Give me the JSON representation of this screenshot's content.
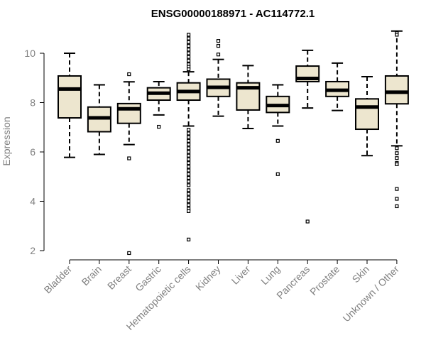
{
  "chart_data": {
    "type": "box",
    "title": "ENSG00000188971 - AC114772.1",
    "xlabel": "",
    "ylabel": "Expression",
    "ylim": [
      1.7,
      11.0
    ],
    "yticks": [
      2,
      4,
      6,
      8,
      10
    ],
    "grid": false,
    "box_color": "#ede6cf",
    "categories": [
      "Bladder",
      "Brain",
      "Breast",
      "Gastric",
      "Hematopoietic cells",
      "Kidney",
      "Liver",
      "Lung",
      "Pancreas",
      "Prostate",
      "Skin",
      "Unknown / Other"
    ],
    "boxes": [
      {
        "min": 5.78,
        "q1": 7.38,
        "median": 8.55,
        "q3": 9.08,
        "max": 10.0,
        "outliers": []
      },
      {
        "min": 5.9,
        "q1": 6.82,
        "median": 7.38,
        "q3": 7.82,
        "max": 8.72,
        "outliers": []
      },
      {
        "min": 6.3,
        "q1": 7.16,
        "median": 7.75,
        "q3": 7.96,
        "max": 8.84,
        "outliers": [
          9.15,
          5.74,
          1.9
        ]
      },
      {
        "min": 7.5,
        "q1": 8.1,
        "median": 8.38,
        "q3": 8.6,
        "max": 8.85,
        "outliers": [
          7.02
        ]
      },
      {
        "min": 7.05,
        "q1": 8.1,
        "median": 8.45,
        "q3": 8.8,
        "max": 9.25,
        "outliers": [
          10.75,
          10.6,
          10.45,
          10.3,
          10.15,
          10.0,
          9.85,
          9.7,
          9.55,
          9.45,
          9.35,
          6.9,
          6.75,
          6.6,
          6.45,
          6.3,
          6.15,
          6.0,
          5.85,
          5.7,
          5.55,
          5.4,
          5.25,
          5.1,
          4.95,
          4.8,
          4.65,
          4.45,
          4.3,
          4.15,
          4.0,
          3.85,
          3.7,
          3.6,
          2.45
        ]
      },
      {
        "min": 7.45,
        "q1": 8.25,
        "median": 8.62,
        "q3": 8.95,
        "max": 9.75,
        "outliers": [
          10.5,
          10.3,
          9.95
        ]
      },
      {
        "min": 6.95,
        "q1": 7.7,
        "median": 8.6,
        "q3": 8.8,
        "max": 9.5,
        "outliers": []
      },
      {
        "min": 7.05,
        "q1": 7.6,
        "median": 7.88,
        "q3": 8.25,
        "max": 8.72,
        "outliers": [
          6.45,
          5.1
        ]
      },
      {
        "min": 7.78,
        "q1": 8.85,
        "median": 8.98,
        "q3": 9.48,
        "max": 10.12,
        "outliers": [
          3.18
        ]
      },
      {
        "min": 7.68,
        "q1": 8.25,
        "median": 8.5,
        "q3": 8.85,
        "max": 9.6,
        "outliers": []
      },
      {
        "min": 5.85,
        "q1": 6.92,
        "median": 7.82,
        "q3": 8.15,
        "max": 9.05,
        "outliers": []
      },
      {
        "min": 6.25,
        "q1": 7.95,
        "median": 8.42,
        "q3": 9.08,
        "max": 10.9,
        "outliers": [
          10.82,
          10.75,
          6.15,
          5.95,
          5.75,
          5.55,
          5.5,
          4.5,
          4.1,
          3.8
        ]
      }
    ]
  }
}
